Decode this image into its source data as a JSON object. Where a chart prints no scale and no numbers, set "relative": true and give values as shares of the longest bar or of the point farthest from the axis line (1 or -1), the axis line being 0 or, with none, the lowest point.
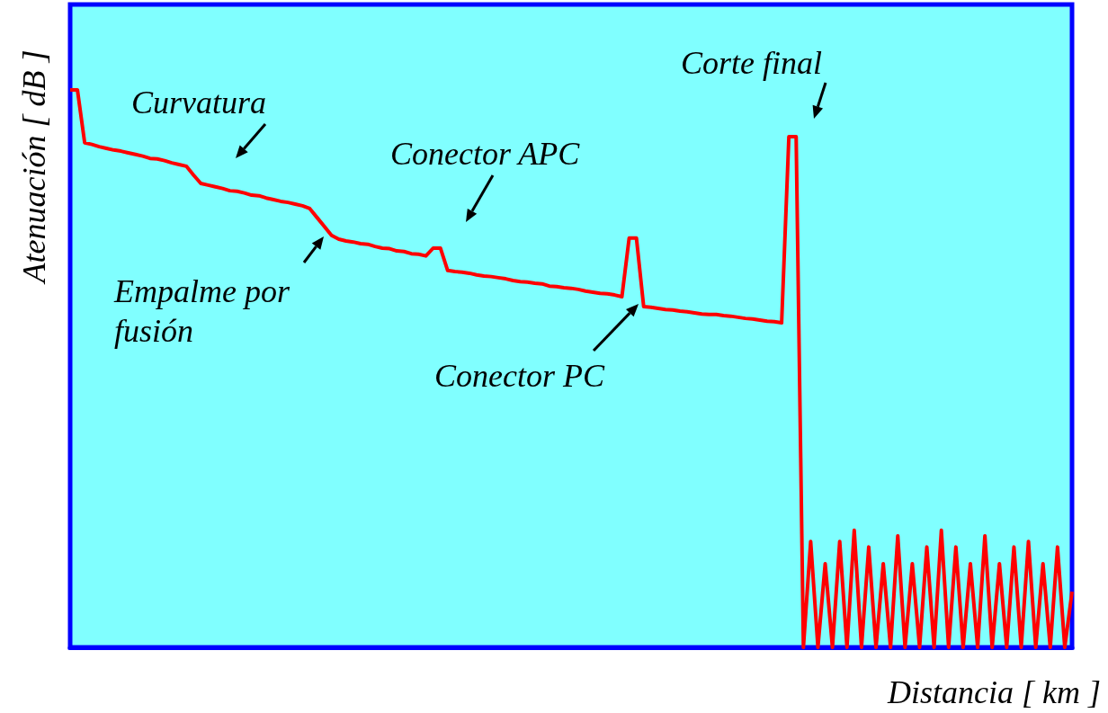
{
  "chart_data": {
    "type": "line",
    "relative": true,
    "xlabel": "Distancia [ km ]",
    "ylabel": "Atenuación  [ dB ]",
    "color": "#ff0000",
    "line_style": "solid",
    "grid": false,
    "annotations": [
      "Curvatura",
      "Empalme por fusión",
      "Conector APC",
      "Conector PC",
      "Corte final"
    ],
    "categories": [
      null,
      null,
      null,
      null,
      null,
      null,
      null,
      null,
      null,
      null,
      null,
      null,
      null,
      null,
      null,
      null,
      null,
      null,
      null,
      null,
      null,
      null,
      null,
      null,
      null,
      null,
      null,
      null,
      null,
      null,
      null,
      null,
      null,
      null,
      null,
      null,
      null,
      null,
      null,
      null,
      null,
      null,
      null,
      null,
      null,
      null,
      null,
      null,
      null,
      null,
      null,
      null,
      null,
      null,
      null,
      null,
      null,
      null,
      null,
      null,
      null,
      null,
      null,
      null,
      null,
      null,
      null,
      null,
      null,
      null,
      null,
      null,
      null,
      null,
      null,
      null,
      null,
      null,
      null,
      null,
      null,
      null,
      null,
      null,
      null,
      null,
      null,
      null,
      null,
      null,
      null,
      null,
      null,
      null,
      null,
      null,
      null,
      null,
      null,
      null,
      null,
      null,
      null,
      null,
      null,
      null,
      null,
      null,
      null,
      null,
      null,
      null,
      null,
      null,
      null,
      null,
      null,
      null,
      null,
      null,
      null,
      null,
      null,
      null,
      null,
      null,
      null,
      null,
      null,
      null,
      null,
      null,
      null,
      null,
      null,
      null,
      null,
      null,
      null
    ],
    "values": [
      1.0,
      1.0,
      0.905,
      0.902,
      0.898,
      0.895,
      0.892,
      0.89,
      0.887,
      0.884,
      0.881,
      0.877,
      0.876,
      0.873,
      0.869,
      0.866,
      0.863,
      0.847,
      0.832,
      0.829,
      0.826,
      0.823,
      0.819,
      0.818,
      0.815,
      0.811,
      0.81,
      0.806,
      0.803,
      0.8,
      0.798,
      0.795,
      0.792,
      0.787,
      0.771,
      0.755,
      0.739,
      0.732,
      0.729,
      0.727,
      0.724,
      0.723,
      0.719,
      0.716,
      0.715,
      0.711,
      0.71,
      0.706,
      0.705,
      0.702,
      0.716,
      0.716,
      0.676,
      0.674,
      0.673,
      0.671,
      0.668,
      0.666,
      0.665,
      0.663,
      0.661,
      0.658,
      0.656,
      0.655,
      0.653,
      0.652,
      0.648,
      0.647,
      0.645,
      0.644,
      0.642,
      0.639,
      0.637,
      0.635,
      0.634,
      0.632,
      0.629,
      0.734,
      0.734,
      0.611,
      0.61,
      0.608,
      0.606,
      0.605,
      0.603,
      0.602,
      0.6,
      0.598,
      0.597,
      0.597,
      0.595,
      0.594,
      0.592,
      0.59,
      0.589,
      0.587,
      0.585,
      0.584,
      0.582,
      0.916,
      0.916,
      0,
      0.19,
      0,
      0.15,
      0,
      0.19,
      0,
      0.21,
      0,
      0.18,
      0,
      0.15,
      0,
      0.2,
      0,
      0.15,
      0,
      0.18,
      0,
      0.21,
      0,
      0.18,
      0,
      0.15,
      0,
      0.2,
      0,
      0.15,
      0,
      0.18,
      0,
      0.19,
      0,
      0.15,
      0,
      0.18,
      0,
      0.1
    ]
  }
}
